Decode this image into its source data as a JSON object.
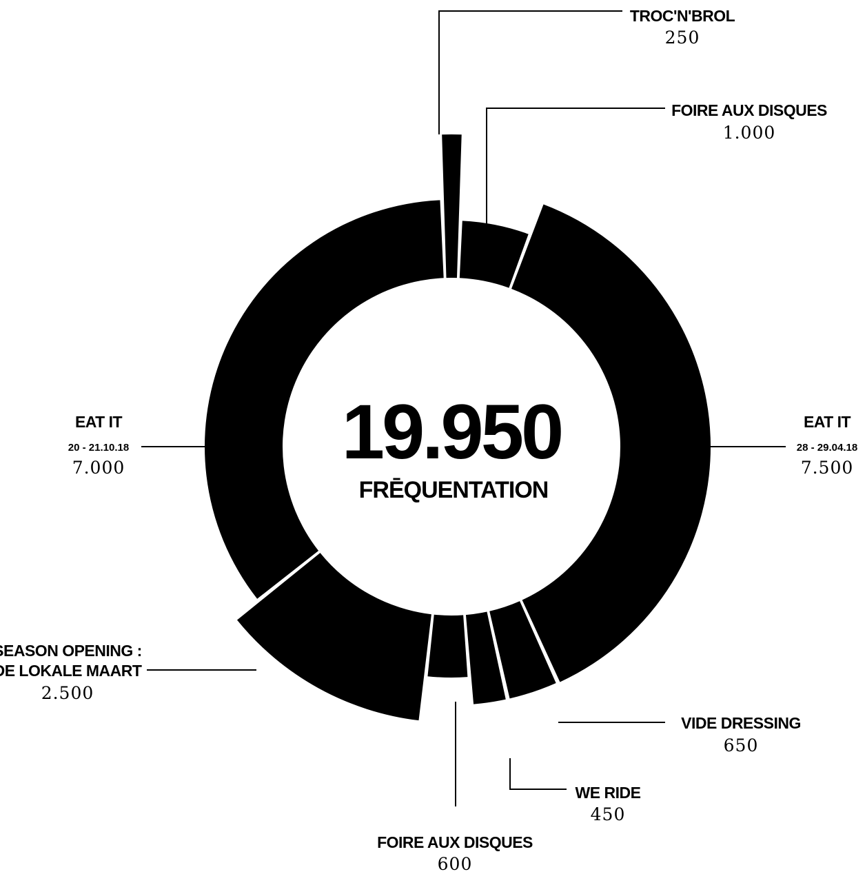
{
  "center": {
    "total": "19.950",
    "label": "FRĒQUENTATION"
  },
  "chart_data": {
    "type": "pie",
    "total": 19950,
    "slices": [
      {
        "name": "TROC'N'BROL",
        "date": "",
        "value": 250,
        "value_label": "250"
      },
      {
        "name": "FOIRE AUX DISQUES",
        "date": "",
        "value": 1000,
        "value_label": "1.000"
      },
      {
        "name": "EAT IT",
        "date": "28 - 29.04.18",
        "value": 7500,
        "value_label": "7.500"
      },
      {
        "name": "VIDE DRESSING",
        "date": "",
        "value": 650,
        "value_label": "650"
      },
      {
        "name": "WE RIDE",
        "date": "",
        "value": 450,
        "value_label": "450"
      },
      {
        "name": "FOIRE AUX DISQUES",
        "date": "",
        "value": 600,
        "value_label": "600"
      },
      {
        "name": "SEASON OPENING :",
        "name_line2": "DE LOKALE MAART",
        "date": "",
        "value": 2500,
        "value_label": "2.500"
      },
      {
        "name": "EAT IT",
        "date": "20 - 21.10.18",
        "value": 7000,
        "value_label": "7.000"
      }
    ],
    "colors": {
      "slice": "#000000",
      "background": "#ffffff"
    }
  }
}
